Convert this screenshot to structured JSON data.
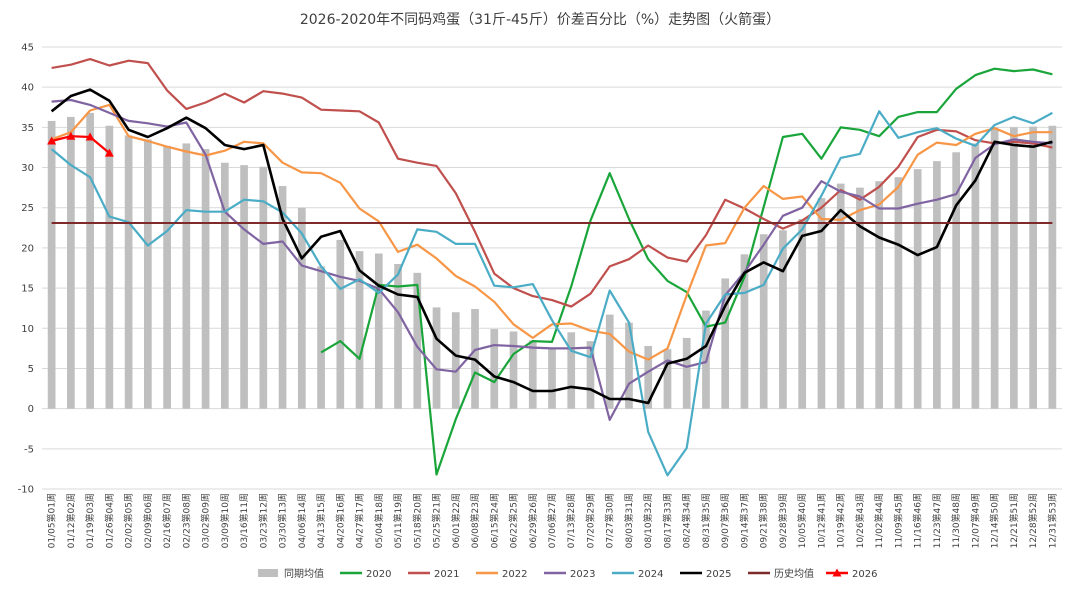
{
  "colors": {
    "avg_bar": "#bfbfbf",
    "2020": "#1aa53a",
    "2021": "#c0504d",
    "2022": "#f79646",
    "2023": "#8064a2",
    "2024": "#4bacc6",
    "2025": "#000000",
    "hist": "#7f2a2a",
    "2026": "#ff0000",
    "grid": "#d9d9d9"
  },
  "chart_data": {
    "type": "bar+line",
    "title": "2026-2020年不同码鸡蛋（31斤-45斤）价差百分比（%）走势图（火箭蛋）",
    "xlabel": "",
    "ylabel": "",
    "ylim": [
      -10,
      45
    ],
    "yticks": [
      -10,
      -5,
      0,
      5,
      10,
      15,
      20,
      25,
      30,
      35,
      40,
      45
    ],
    "grid": true,
    "legend_position": "bottom",
    "categories": [
      "01/05第01周",
      "01/12第02周",
      "01/19第03周",
      "01/26第04周",
      "02/02第05周",
      "02/09第06周",
      "02/16第07周",
      "02/23第08周",
      "03/02第09周",
      "03/09第10周",
      "03/16第11周",
      "03/23第12周",
      "03/30第13周",
      "04/06第14周",
      "04/13第15周",
      "04/20第16周",
      "04/27第17周",
      "05/04第18周",
      "05/11第19周",
      "05/18第20周",
      "05/25第21周",
      "06/01第22周",
      "06/08第23周",
      "06/15第24周",
      "06/22第25周",
      "06/29第26周",
      "07/06第27周",
      "07/13第28周",
      "07/20第29周",
      "07/27第30周",
      "08/03第31周",
      "08/10第32周",
      "08/17第33周",
      "08/24第34周",
      "08/31第35周",
      "09/07第36周",
      "09/14第37周",
      "09/21第38周",
      "09/28第39周",
      "10/05第40周",
      "10/12第41周",
      "10/19第42周",
      "10/26第43周",
      "11/02第44周",
      "11/09第45周",
      "11/16第46周",
      "11/23第47周",
      "11/30第48周",
      "12/07第49周",
      "12/14第50周",
      "12/21第51周",
      "12/28第52周",
      "12/31第53周"
    ],
    "bar_series": {
      "name": "同期均值",
      "values": [
        35.8,
        36.3,
        36.8,
        35.2,
        34,
        33.5,
        32.7,
        33,
        32.3,
        30.6,
        30.3,
        30.1,
        27.7,
        25,
        17.7,
        21,
        19.6,
        19.3,
        18,
        16.9,
        12.6,
        12,
        12.4,
        9.9,
        9.6,
        8.5,
        7.6,
        9.5,
        8.4,
        11.7,
        10.7,
        7.8,
        7.4,
        8.8,
        12.2,
        16.2,
        19.2,
        21.7,
        22.2,
        23.6,
        26.2,
        28,
        27.5,
        28.3,
        28.8,
        29.8,
        30.8,
        31.9,
        33,
        35,
        35,
        35.1,
        35.2
      ]
    },
    "series": [
      {
        "name": "2020",
        "values": [
          null,
          null,
          null,
          null,
          null,
          null,
          null,
          null,
          null,
          null,
          null,
          null,
          null,
          null,
          7,
          8.4,
          6.2,
          15.4,
          15.2,
          15.4,
          -8.2,
          -1.3,
          4.5,
          3.3,
          6.8,
          8.4,
          8.3,
          15.2,
          23.4,
          29.3,
          23.6,
          18.6,
          15.9,
          14.5,
          10.2,
          10.7,
          16.4,
          25.1,
          33.8,
          34.2,
          31.1,
          35,
          34.7,
          33.9,
          36.3,
          36.9,
          36.9,
          39.8,
          41.5,
          42.3,
          42,
          42.2,
          41.6
        ]
      },
      {
        "name": "2021",
        "values": [
          42.4,
          42.8,
          43.5,
          42.7,
          43.3,
          43,
          39.6,
          37.3,
          38.1,
          39.2,
          38.1,
          39.5,
          39.2,
          38.7,
          37.2,
          37.1,
          37,
          35.6,
          31.1,
          30.6,
          30.2,
          26.8,
          22,
          16.8,
          15,
          14,
          13.5,
          12.7,
          14.3,
          17.7,
          18.6,
          20.3,
          18.8,
          18.3,
          21.6,
          26,
          24.9,
          23.6,
          22.4,
          23.4,
          25,
          27.2,
          26,
          27.6,
          30.1,
          33.8,
          34.7,
          34.5,
          33.4,
          33,
          33.2,
          33,
          32.5
        ]
      },
      {
        "name": "2022",
        "values": [
          33.5,
          34.4,
          37.1,
          37.8,
          33.9,
          33.3,
          32.6,
          32,
          31.5,
          32.1,
          33.2,
          33,
          30.6,
          29.4,
          29.3,
          28.1,
          24.9,
          23.3,
          19.5,
          20.4,
          18.7,
          16.5,
          15.2,
          13.3,
          10.5,
          8.8,
          10.5,
          10.6,
          9.7,
          9.3,
          7.1,
          6.1,
          7.5,
          14.1,
          20.3,
          20.6,
          25,
          27.7,
          26.1,
          26.4,
          23.6,
          23.5,
          24.7,
          25.4,
          27.6,
          31.6,
          33.1,
          32.8,
          34.2,
          34.9,
          33.9,
          34.4,
          34.4
        ]
      },
      {
        "name": "2023",
        "values": [
          38.2,
          38.4,
          37.8,
          36.8,
          35.8,
          35.5,
          35.1,
          35.6,
          31.6,
          24.5,
          22.3,
          20.5,
          20.8,
          17.8,
          17.1,
          16.4,
          15.9,
          14.9,
          12,
          7.7,
          4.9,
          4.6,
          7.3,
          7.9,
          7.8,
          7.6,
          7.5,
          7.5,
          7.6,
          -1.4,
          3.1,
          4.6,
          6,
          5.2,
          5.8,
          14.1,
          17,
          20.4,
          24,
          25,
          28.3,
          27,
          26.4,
          24.9,
          24.9,
          25.5,
          26,
          26.7,
          31.2,
          32.9,
          33.5,
          33.2,
          33
        ]
      },
      {
        "name": "2024",
        "values": [
          32.3,
          30.3,
          28.8,
          23.9,
          23.2,
          20.3,
          22.1,
          24.7,
          24.5,
          24.5,
          26,
          25.8,
          24.4,
          21.8,
          17.7,
          14.9,
          16.1,
          14.4,
          16.7,
          22.3,
          22,
          20.5,
          20.5,
          15.3,
          15.1,
          15.5,
          11,
          7.2,
          6.4,
          14.7,
          10.7,
          -2.9,
          -8.3,
          -4.9,
          10.6,
          14.2,
          14.4,
          15.4,
          19.9,
          22.3,
          26.5,
          31.2,
          31.7,
          37,
          33.7,
          34.4,
          34.9,
          33.6,
          32.7,
          35.3,
          36.3,
          35.5,
          36.8
        ]
      },
      {
        "name": "2025",
        "values": [
          37,
          38.9,
          39.7,
          38.3,
          34.7,
          33.8,
          34.9,
          36.2,
          34.9,
          32.8,
          32.3,
          32.8,
          23.6,
          18.7,
          21.4,
          22.1,
          17.2,
          15.3,
          14.2,
          13.9,
          8.7,
          6.6,
          6.1,
          4,
          3.3,
          2.2,
          2.2,
          2.7,
          2.4,
          1.2,
          1.2,
          0.7,
          5.6,
          6.2,
          7.8,
          12.8,
          16.9,
          18.2,
          17.1,
          21.5,
          22.1,
          24.7,
          22.7,
          21.3,
          20.4,
          19.1,
          20.1,
          25.3,
          28.4,
          33.2,
          32.8,
          32.6,
          33.2
        ]
      },
      {
        "name": "历史均值",
        "values": [
          23.1,
          23.1,
          23.1,
          23.1,
          23.1,
          23.1,
          23.1,
          23.1,
          23.1,
          23.1,
          23.1,
          23.1,
          23.1,
          23.1,
          23.1,
          23.1,
          23.1,
          23.1,
          23.1,
          23.1,
          23.1,
          23.1,
          23.1,
          23.1,
          23.1,
          23.1,
          23.1,
          23.1,
          23.1,
          23.1,
          23.1,
          23.1,
          23.1,
          23.1,
          23.1,
          23.1,
          23.1,
          23.1,
          23.1,
          23.1,
          23.1,
          23.1,
          23.1,
          23.1,
          23.1,
          23.1,
          23.1,
          23.1,
          23.1,
          23.1,
          23.1,
          23.1,
          23.1
        ]
      },
      {
        "name": "2026",
        "values": [
          33.3,
          33.9,
          33.8,
          31.8,
          null,
          null,
          null,
          null,
          null,
          null,
          null,
          null,
          null,
          null,
          null,
          null,
          null,
          null,
          null,
          null,
          null,
          null,
          null,
          null,
          null,
          null,
          null,
          null,
          null,
          null,
          null,
          null,
          null,
          null,
          null,
          null,
          null,
          null,
          null,
          null,
          null,
          null,
          null,
          null,
          null,
          null,
          null,
          null,
          null,
          null,
          null,
          null,
          null
        ],
        "marker": "triangle"
      }
    ],
    "legend": [
      "同期均值",
      "2020",
      "2021",
      "2022",
      "2023",
      "2024",
      "2025",
      "历史均值",
      "2026"
    ]
  }
}
